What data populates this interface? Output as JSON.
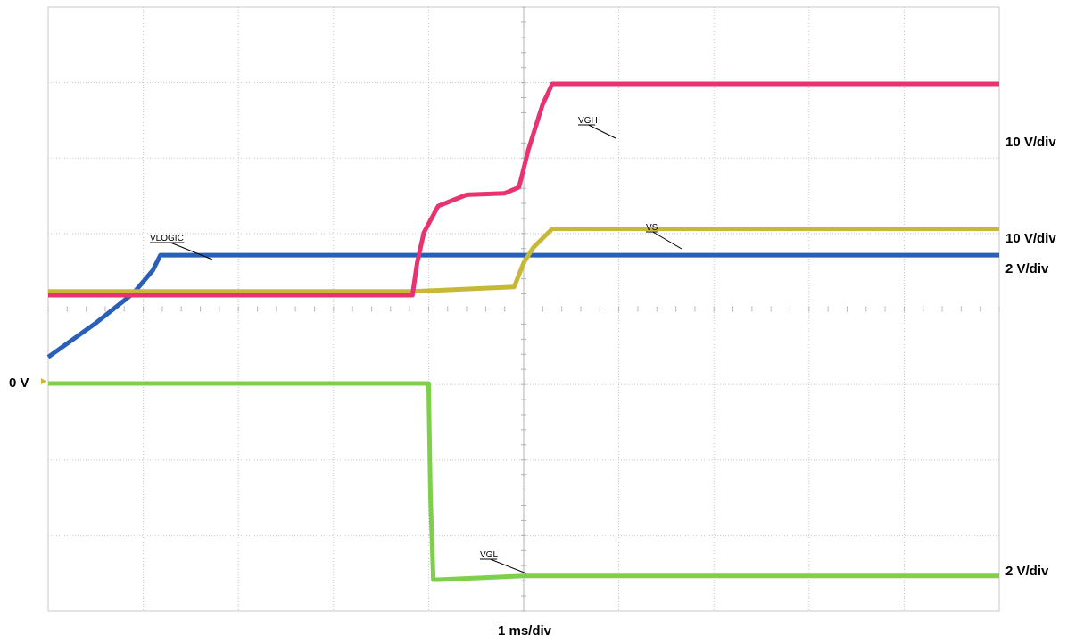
{
  "chart_data": {
    "type": "line",
    "title": "",
    "xlabel": "1 ms/div",
    "grid": true,
    "x_divisions": 10,
    "y_divisions": 8,
    "x_unit": "ms",
    "zero_label": "0 V",
    "colors": {
      "VGH": "#e8336f",
      "VS": "#c8b838",
      "VLOGIC": "#2a5fb8",
      "VGL": "#7ed04a",
      "grid": "#c8c8c8",
      "marker": "#c8b838"
    },
    "series": [
      {
        "name": "VGH",
        "scale_label": "10 V/div",
        "x": [
          0,
          3.83,
          3.88,
          3.95,
          4.1,
          4.4,
          4.8,
          4.95,
          5.05,
          5.2,
          5.3,
          10
        ],
        "y": [
          1.17,
          1.17,
          1.6,
          2.0,
          2.35,
          2.5,
          2.52,
          2.6,
          3.1,
          3.7,
          3.97,
          3.97
        ]
      },
      {
        "name": "VS",
        "scale_label": "10 V/div",
        "x": [
          0,
          3.83,
          4.9,
          5.0,
          5.1,
          5.3,
          10
        ],
        "y": [
          1.22,
          1.22,
          1.28,
          1.6,
          1.8,
          2.05,
          2.05
        ]
      },
      {
        "name": "VLOGIC",
        "scale_label": "2 V/div",
        "x": [
          0,
          0.5,
          0.9,
          1.1,
          1.18,
          10
        ],
        "y": [
          0.35,
          0.8,
          1.2,
          1.5,
          1.7,
          1.7
        ]
      },
      {
        "name": "VGL",
        "scale_label": "2 V/div",
        "x": [
          0,
          4.0,
          4.02,
          4.05,
          4.1,
          5.0,
          10
        ],
        "y": [
          0,
          0,
          -1.5,
          -2.6,
          -2.6,
          -2.55,
          -2.55
        ]
      }
    ]
  }
}
